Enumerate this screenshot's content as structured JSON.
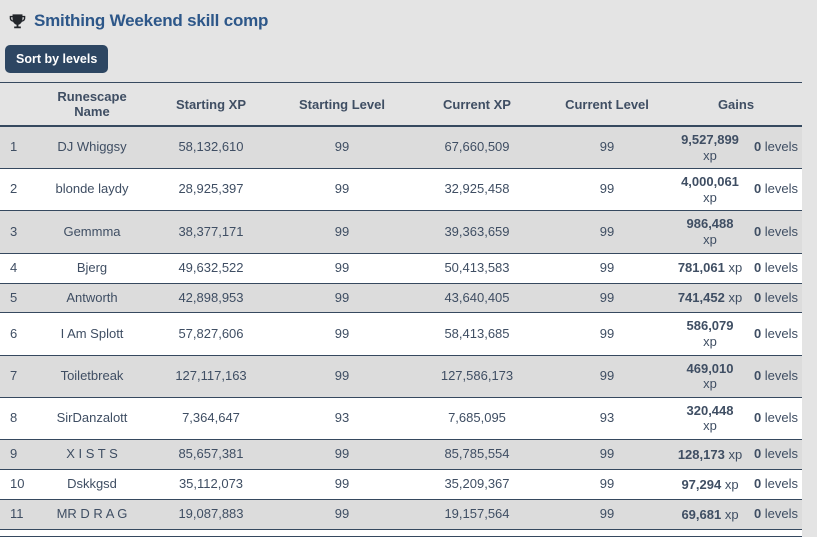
{
  "header": {
    "icon": "trophy-icon",
    "title": "Smithing Weekend skill comp",
    "sort_button_label": "Sort by levels"
  },
  "table": {
    "columns": [
      "",
      "Runescape Name",
      "Starting XP",
      "Starting Level",
      "Current XP",
      "Current Level",
      "Gains"
    ],
    "rows": [
      {
        "rank": "1",
        "name": "DJ Whiggsy",
        "starting_xp": "58,132,610",
        "starting_level": "99",
        "current_xp": "67,660,509",
        "current_level": "99",
        "xp_gain": "9,527,899",
        "xp_unit": "xp",
        "level_gain": "0",
        "level_unit": "levels",
        "wrap": true
      },
      {
        "rank": "2",
        "name": "blonde laydy",
        "starting_xp": "28,925,397",
        "starting_level": "99",
        "current_xp": "32,925,458",
        "current_level": "99",
        "xp_gain": "4,000,061",
        "xp_unit": "xp",
        "level_gain": "0",
        "level_unit": "levels",
        "wrap": true
      },
      {
        "rank": "3",
        "name": "Gemmma",
        "starting_xp": "38,377,171",
        "starting_level": "99",
        "current_xp": "39,363,659",
        "current_level": "99",
        "xp_gain": "986,488",
        "xp_unit": "xp",
        "level_gain": "0",
        "level_unit": "levels",
        "wrap": true
      },
      {
        "rank": "4",
        "name": "Bjerg",
        "starting_xp": "49,632,522",
        "starting_level": "99",
        "current_xp": "50,413,583",
        "current_level": "99",
        "xp_gain": "781,061",
        "xp_unit": "xp",
        "level_gain": "0",
        "level_unit": "levels",
        "wrap": false
      },
      {
        "rank": "5",
        "name": "Antworth",
        "starting_xp": "42,898,953",
        "starting_level": "99",
        "current_xp": "43,640,405",
        "current_level": "99",
        "xp_gain": "741,452",
        "xp_unit": "xp",
        "level_gain": "0",
        "level_unit": "levels",
        "wrap": false
      },
      {
        "rank": "6",
        "name": "I Am Splott",
        "starting_xp": "57,827,606",
        "starting_level": "99",
        "current_xp": "58,413,685",
        "current_level": "99",
        "xp_gain": "586,079",
        "xp_unit": "xp",
        "level_gain": "0",
        "level_unit": "levels",
        "wrap": true
      },
      {
        "rank": "7",
        "name": "Toiletbreak",
        "starting_xp": "127,117,163",
        "starting_level": "99",
        "current_xp": "127,586,173",
        "current_level": "99",
        "xp_gain": "469,010",
        "xp_unit": "xp",
        "level_gain": "0",
        "level_unit": "levels",
        "wrap": true
      },
      {
        "rank": "8",
        "name": "SirDanzalott",
        "starting_xp": "7,364,647",
        "starting_level": "93",
        "current_xp": "7,685,095",
        "current_level": "93",
        "xp_gain": "320,448",
        "xp_unit": "xp",
        "level_gain": "0",
        "level_unit": "levels",
        "wrap": true
      },
      {
        "rank": "9",
        "name": "X I S T S",
        "starting_xp": "85,657,381",
        "starting_level": "99",
        "current_xp": "85,785,554",
        "current_level": "99",
        "xp_gain": "128,173",
        "xp_unit": "xp",
        "level_gain": "0",
        "level_unit": "levels",
        "wrap": false
      },
      {
        "rank": "10",
        "name": "Dskkgsd",
        "starting_xp": "35,112,073",
        "starting_level": "99",
        "current_xp": "35,209,367",
        "current_level": "99",
        "xp_gain": "97,294",
        "xp_unit": "xp",
        "level_gain": "0",
        "level_unit": "levels",
        "wrap": false
      },
      {
        "rank": "11",
        "name": "MR D R A G",
        "starting_xp": "19,087,883",
        "starting_level": "99",
        "current_xp": "19,157,564",
        "current_level": "99",
        "xp_gain": "69,681",
        "xp_unit": "xp",
        "level_gain": "0",
        "level_unit": "levels",
        "wrap": false
      }
    ]
  },
  "colors": {
    "page_background": "#e4e4e4",
    "row_gray": "#dcdcdc",
    "row_white": "#ffffff",
    "border_navy": "#36495f",
    "text": "#3f4e63",
    "title_blue": "#2d5789",
    "button_navy": "#2d4662",
    "button_text": "#ffffff",
    "trophy_dark": "#23262b"
  }
}
